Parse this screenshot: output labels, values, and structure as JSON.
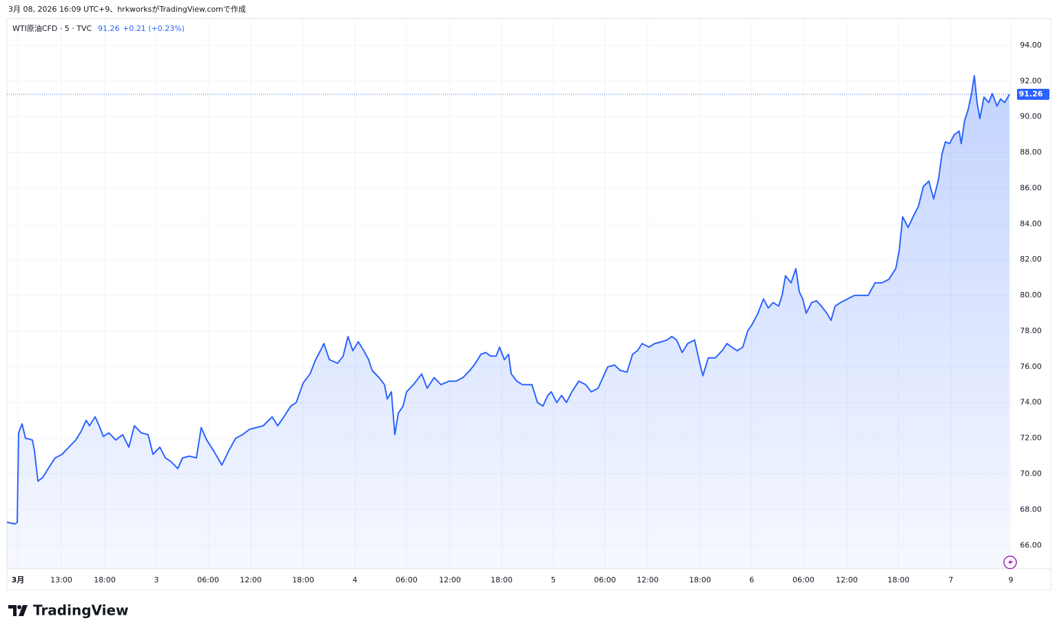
{
  "header": {
    "caption": "3月 08, 2026 16:09 UTC+9、hrkworksがTradingView.comで作成"
  },
  "chart_data": {
    "type": "area",
    "title": "WTI原油CFD · 5 · TVC",
    "last": 91.26,
    "change": "+0.21 (+0.23%)",
    "color": "#2962ff",
    "grid": true,
    "x": [
      -1.28,
      -0.32,
      -0.08,
      0.08,
      0.48,
      0.88,
      1.68,
      1.92,
      2.32,
      2.88,
      3.52,
      4.32,
      5.12,
      5.92,
      6.72,
      7.36,
      7.92,
      8.32,
      8.96,
      9.52,
      9.92,
      10.56,
      11.36,
      12.16,
      12.88,
      13.52,
      14.32,
      15.12,
      15.68,
      16.48,
      17.12,
      17.76,
      18.56,
      19.12,
      19.92,
      20.72,
      21.28,
      21.92,
      22.72,
      23.68,
      24.48,
      25.28,
      26.08,
      26.88,
      27.68,
      28.48,
      29.52,
      30.16,
      30.88,
      31.68,
      32.32,
      33.12,
      33.92,
      34.56,
      35.12,
      35.52,
      36.16,
      37.12,
      37.76,
      38.32,
      38.88,
      39.52,
      40.16,
      40.72,
      41.12,
      41.92,
      42.56,
      42.88,
      43.36,
      43.76,
      44.16,
      44.72,
      45.12,
      45.92,
      46.88,
      47.52,
      48.32,
      49.12,
      50.08,
      50.88,
      51.68,
      52.48,
      53.12,
      53.76,
      54.32,
      54.88,
      55.52,
      55.92,
      56.48,
      56.96,
      57.28,
      57.92,
      58.56,
      59.12,
      59.68,
      60.32,
      60.96,
      61.52,
      61.92,
      62.56,
      63.12,
      63.68,
      64.32,
      65.12,
      65.92,
      66.56,
      67.36,
      67.92,
      68.48,
      69.28,
      69.92,
      70.72,
      71.36,
      71.92,
      72.48,
      73.28,
      73.92,
      74.72,
      75.36,
      75.92,
      76.48,
      77.12,
      77.76,
      78.56,
      79.12,
      79.52,
      80.16,
      80.96,
      81.76,
      82.32,
      82.88,
      83.52,
      84.16,
      84.72,
      85.28,
      85.92,
      86.56,
      87.12,
      87.68,
      88.32,
      88.72,
      89.12,
      89.76,
      90.32,
      90.72,
      91.12,
      91.52,
      92.16,
      92.72,
      93.28,
      93.92,
      94.4,
      94.88,
      95.52,
      96.32,
      97.12,
      97.92,
      98.72,
      99.52,
      100.32,
      101.12,
      101.92,
      102.32,
      102.72,
      103.36,
      103.92,
      104.56,
      105.12,
      105.76,
      106.32,
      106.88,
      107.28,
      107.68,
      108.16,
      108.72,
      109.28,
      109.52,
      109.92,
      110.32,
      110.72,
      111.04,
      111.36,
      111.68,
      112.16,
      112.72,
      113.12,
      113.68,
      114.08,
      114.56,
      115.12
    ],
    "values": [
      67.3,
      67.2,
      67.3,
      72.3,
      72.8,
      72.0,
      71.9,
      71.3,
      69.6,
      69.8,
      70.3,
      70.9,
      71.1,
      71.5,
      71.9,
      72.4,
      73.0,
      72.7,
      73.2,
      72.6,
      72.1,
      72.3,
      71.9,
      72.2,
      71.5,
      72.7,
      72.3,
      72.2,
      71.1,
      71.5,
      70.9,
      70.7,
      70.3,
      70.9,
      71.0,
      70.9,
      72.6,
      71.9,
      71.3,
      70.5,
      71.3,
      72.0,
      72.2,
      72.5,
      72.6,
      72.7,
      73.2,
      72.7,
      73.2,
      73.8,
      74.0,
      75.1,
      75.6,
      76.4,
      76.9,
      77.3,
      76.4,
      76.2,
      76.6,
      77.7,
      76.9,
      77.4,
      76.9,
      76.4,
      75.8,
      75.4,
      75.0,
      74.2,
      74.6,
      72.2,
      73.4,
      73.8,
      74.6,
      75.0,
      75.6,
      74.8,
      75.4,
      75.0,
      75.2,
      75.2,
      75.4,
      75.8,
      76.2,
      76.7,
      76.8,
      76.6,
      76.6,
      77.1,
      76.4,
      76.7,
      75.6,
      75.2,
      75.0,
      75.0,
      75.0,
      74.0,
      73.8,
      74.4,
      74.6,
      74.0,
      74.4,
      74.0,
      74.6,
      75.2,
      75.0,
      74.6,
      74.8,
      75.4,
      76.0,
      76.1,
      75.8,
      75.7,
      76.7,
      76.9,
      77.3,
      77.1,
      77.3,
      77.4,
      77.5,
      77.7,
      77.5,
      76.8,
      77.3,
      77.5,
      76.3,
      75.5,
      76.5,
      76.5,
      76.9,
      77.3,
      77.1,
      76.9,
      77.1,
      78.0,
      78.4,
      79.0,
      79.8,
      79.3,
      79.6,
      79.4,
      80.0,
      81.1,
      80.7,
      81.5,
      80.2,
      79.8,
      79.0,
      79.6,
      79.7,
      79.4,
      79.0,
      78.6,
      79.4,
      79.6,
      79.8,
      80.0,
      80.0,
      80.0,
      80.7,
      80.7,
      80.9,
      81.5,
      82.5,
      84.4,
      83.8,
      84.4,
      85.0,
      86.1,
      86.4,
      85.4,
      86.5,
      87.9,
      88.6,
      88.5,
      89.0,
      89.2,
      88.5,
      89.8,
      90.4,
      91.3,
      92.3,
      90.8,
      89.9,
      91.1,
      90.8,
      91.3,
      90.6,
      91.0,
      90.8,
      91.26
    ],
    "xlim": [
      -1.28,
      115.36
    ],
    "ylim": [
      64.7,
      95.5
    ],
    "xticks": [
      {
        "value": 0,
        "label": "3月"
      },
      {
        "value": 5.04,
        "label": "13:00"
      },
      {
        "value": 10.08,
        "label": "18:00"
      },
      {
        "value": 16.08,
        "label": "3"
      },
      {
        "value": 22.08,
        "label": "06:00"
      },
      {
        "value": 27.04,
        "label": "12:00"
      },
      {
        "value": 33.12,
        "label": "18:00"
      },
      {
        "value": 39.12,
        "label": "4"
      },
      {
        "value": 45.12,
        "label": "06:00"
      },
      {
        "value": 50.16,
        "label": "12:00"
      },
      {
        "value": 56.16,
        "label": "18:00"
      },
      {
        "value": 62.16,
        "label": "5"
      },
      {
        "value": 68.16,
        "label": "06:00"
      },
      {
        "value": 73.12,
        "label": "12:00"
      },
      {
        "value": 79.2,
        "label": "18:00"
      },
      {
        "value": 85.2,
        "label": "6"
      },
      {
        "value": 91.2,
        "label": "06:00"
      },
      {
        "value": 96.24,
        "label": "12:00"
      },
      {
        "value": 102.24,
        "label": "18:00"
      },
      {
        "value": 108.32,
        "label": "7"
      },
      {
        "value": 115.28,
        "label": "9"
      }
    ],
    "yticks": [
      {
        "value": 66,
        "label": "66.00"
      },
      {
        "value": 68,
        "label": "68.00"
      },
      {
        "value": 70,
        "label": "70.00"
      },
      {
        "value": 72,
        "label": "72.00"
      },
      {
        "value": 74,
        "label": "74.00"
      },
      {
        "value": 76,
        "label": "76.00"
      },
      {
        "value": 78,
        "label": "78.00"
      },
      {
        "value": 80,
        "label": "80.00"
      },
      {
        "value": 82,
        "label": "82.00"
      },
      {
        "value": 84,
        "label": "84.00"
      },
      {
        "value": 86,
        "label": "86.00"
      },
      {
        "value": 88,
        "label": "88.00"
      },
      {
        "value": 90,
        "label": "90.00"
      },
      {
        "value": 92,
        "label": "92.00"
      },
      {
        "value": 94,
        "label": "94.00"
      }
    ]
  },
  "footer": {
    "brand": "TradingView"
  }
}
